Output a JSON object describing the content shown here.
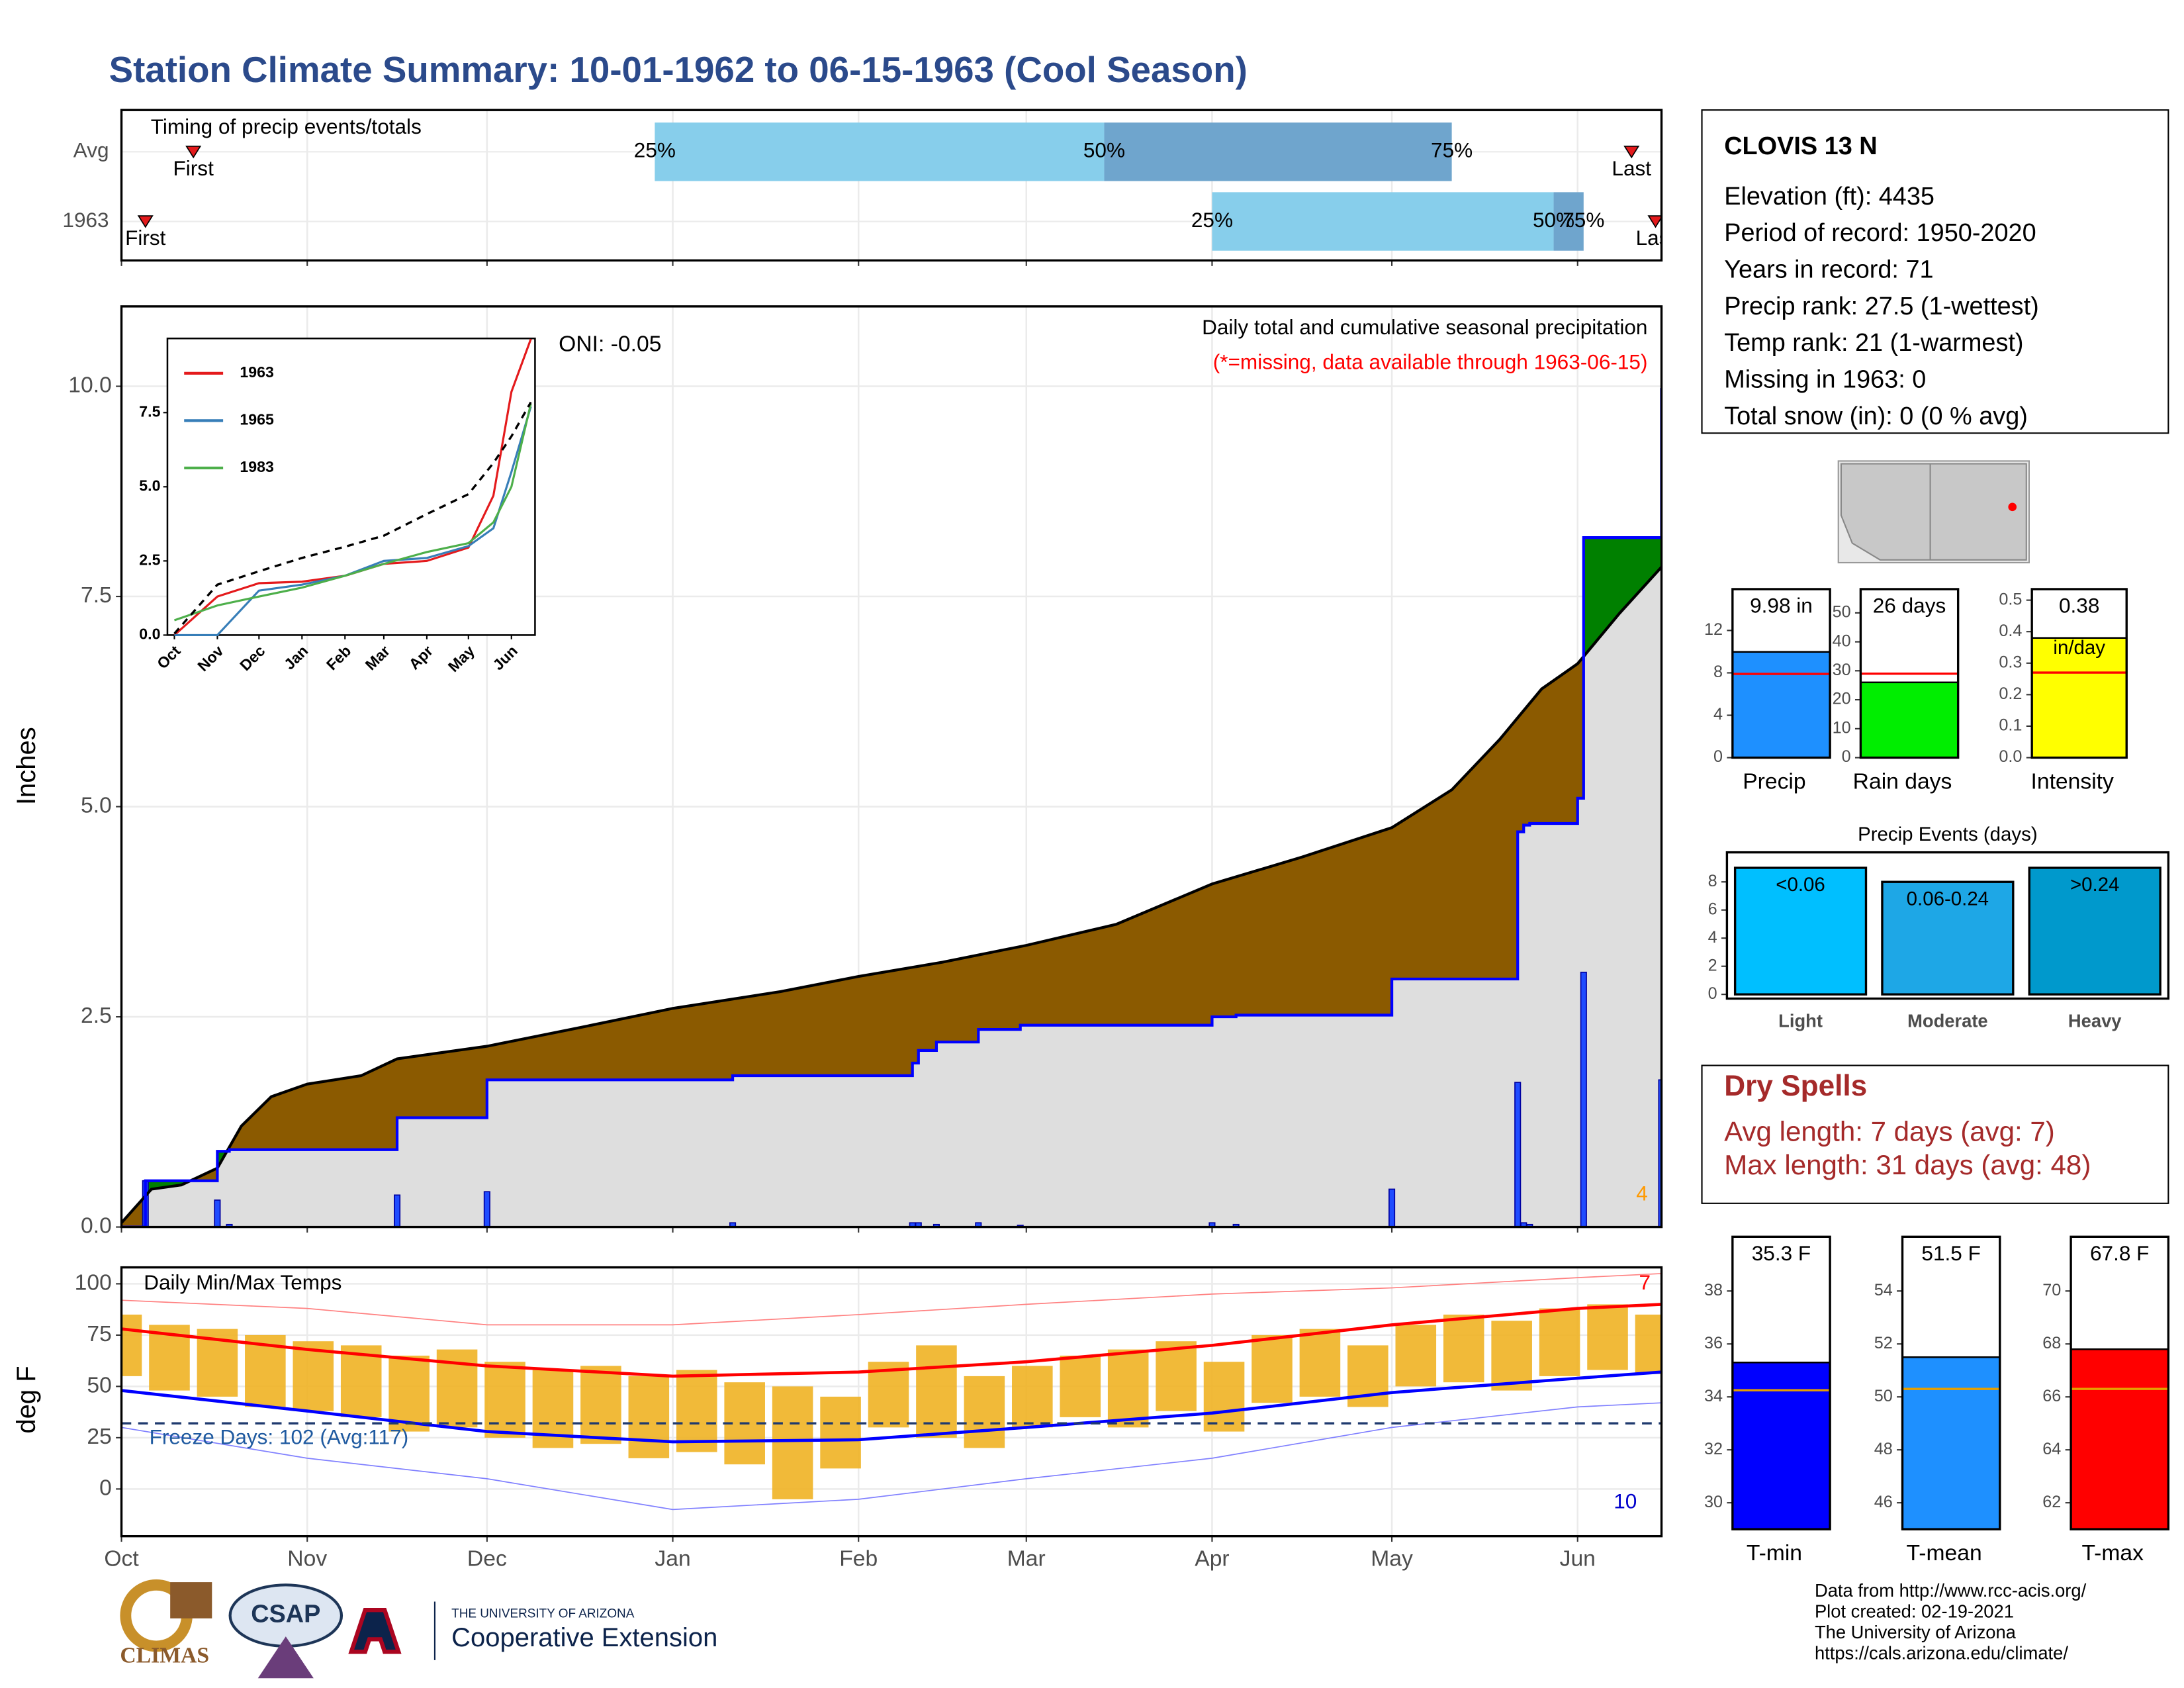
{
  "title": "Station Climate Summary: 10-01-1962 to 06-15-1963 (Cool Season)",
  "station": {
    "name": "CLOVIS 13 N",
    "lines": [
      "Elevation (ft): 4435",
      "Period of record: 1950-2020",
      "Years in record: 71",
      "Precip rank: 27.5 (1-wettest)",
      "Temp rank: 21 (1-warmest)",
      "Missing in 1963: 0",
      "Total snow (in): 0 (0 % avg)"
    ]
  },
  "dry_spells": {
    "title": "Dry Spells",
    "lines": [
      "Avg length: 7 days (avg: 7)",
      "Max length: 31 days (avg: 48)"
    ]
  },
  "credits": [
    "Data from http://www.rcc-acis.org/",
    "Plot created: 02-19-2021",
    "The University of Arizona",
    "https://cals.arizona.edu/climate/"
  ],
  "logos": {
    "climas": "CLIMAS",
    "csap": "CSAP",
    "university": "THE UNIVERSITY OF ARIZONA",
    "extension": "Cooperative Extension"
  },
  "chart_data": [
    {
      "type": "timeline",
      "title": "Timing of precip events/totals",
      "xlim": [
        0,
        257
      ],
      "xticks": [
        0,
        31,
        61,
        92,
        123,
        151,
        182,
        212,
        243
      ],
      "grid": true,
      "rows": [
        {
          "name": "Avg",
          "first": 12,
          "last": 252,
          "quantiles": [
            89,
            164,
            222
          ]
        },
        {
          "name": "1963",
          "first": 4,
          "last": 256,
          "quantiles": [
            182,
            239,
            244
          ]
        }
      ],
      "first_label": "First",
      "last_label": "Last",
      "quantile_labels": [
        "25%",
        "50%",
        "75%"
      ],
      "colors": [
        "#87ceeb",
        "#6fa5cd"
      ],
      "marker_color": "#e31a1c"
    },
    {
      "type": "cumulative-precip",
      "ylabel": "Inches",
      "xlim": [
        0,
        257
      ],
      "xticks": [
        0,
        31,
        61,
        92,
        123,
        151,
        182,
        212,
        243
      ],
      "grid": true,
      "ylim": [
        0,
        10.95
      ],
      "yticks": [
        {
          "value": 0,
          "label": "0.0"
        },
        {
          "value": 2.5,
          "label": "2.5"
        },
        {
          "value": 5,
          "label": "5.0"
        },
        {
          "value": 7.5,
          "label": "7.5"
        },
        {
          "value": 10,
          "label": "10.0"
        }
      ],
      "oni": "ONI: -0.05",
      "subtitle": "Daily total and cumulative seasonal precipitation",
      "note": "(*=missing, data available through 1963-06-15)",
      "missing_count": "4",
      "average": {
        "color": "#000000",
        "x": [
          0,
          5,
          10,
          16,
          20,
          25,
          31,
          40,
          46,
          61,
          75,
          92,
          110,
          123,
          137,
          151,
          166,
          182,
          197,
          212,
          222,
          230,
          237,
          243,
          250,
          257
        ],
        "values": [
          0.05,
          0.45,
          0.5,
          0.7,
          1.2,
          1.55,
          1.7,
          1.8,
          2.0,
          2.15,
          2.35,
          2.6,
          2.8,
          2.98,
          3.15,
          3.35,
          3.6,
          4.08,
          4.4,
          4.75,
          5.2,
          5.8,
          6.4,
          6.7,
          7.3,
          7.85
        ]
      },
      "season": {
        "color": "#0000ff",
        "x": [
          0,
          4,
          16,
          18,
          46,
          61,
          102,
          132,
          133,
          136,
          143,
          150,
          182,
          186,
          212,
          233,
          234,
          235,
          243,
          244,
          256,
          257
        ],
        "values": [
          0,
          0.55,
          0.9,
          0.92,
          1.3,
          1.75,
          1.8,
          1.95,
          2.1,
          2.2,
          2.35,
          2.4,
          2.5,
          2.52,
          2.95,
          4.7,
          4.78,
          4.8,
          5.1,
          8.2,
          8.2,
          9.98
        ]
      },
      "daily": {
        "color": "#1f4cff",
        "x": [
          4,
          16,
          18,
          46,
          61,
          102,
          132,
          133,
          136,
          143,
          150,
          182,
          186,
          212,
          233,
          234,
          235,
          244,
          257
        ],
        "values": [
          0.55,
          0.32,
          0.03,
          0.38,
          0.42,
          0.05,
          0.05,
          0.05,
          0.03,
          0.05,
          0.02,
          0.05,
          0.03,
          0.45,
          1.72,
          0.05,
          0.03,
          3.03,
          1.75
        ]
      },
      "below_average_color": "#8b5a00",
      "above_average_color": "#008000",
      "base_color": "#dedede"
    },
    {
      "type": "line",
      "xlim": [
        0,
        257
      ],
      "ylim": [
        0,
        10
      ],
      "xticks": [
        {
          "value": 0,
          "label": "Oct"
        },
        {
          "value": 31,
          "label": "Nov"
        },
        {
          "value": 61,
          "label": "Dec"
        },
        {
          "value": 92,
          "label": "Jan"
        },
        {
          "value": 123,
          "label": "Feb"
        },
        {
          "value": 151,
          "label": "Mar"
        },
        {
          "value": 182,
          "label": "Apr"
        },
        {
          "value": 212,
          "label": "May"
        },
        {
          "value": 243,
          "label": "Jun"
        }
      ],
      "yticks": [
        {
          "value": 0,
          "label": "0.0"
        },
        {
          "value": 2.5,
          "label": "2.5"
        },
        {
          "value": 5,
          "label": "5.0"
        },
        {
          "value": 7.5,
          "label": "7.5"
        }
      ],
      "x": [
        0,
        31,
        61,
        92,
        123,
        151,
        182,
        212,
        230,
        243,
        257
      ],
      "average": {
        "color": "#000000",
        "values": [
          0.05,
          1.7,
          2.15,
          2.6,
          2.98,
          3.35,
          4.08,
          4.75,
          5.8,
          6.7,
          7.85
        ]
      },
      "series": [
        {
          "name": "1963",
          "color": "#e41a1c",
          "values": [
            0,
            1.3,
            1.75,
            1.8,
            2.0,
            2.4,
            2.5,
            2.95,
            4.7,
            8.2,
            9.98
          ]
        },
        {
          "name": "1965",
          "color": "#377eb8",
          "values": [
            0,
            0,
            1.5,
            1.7,
            2.0,
            2.5,
            2.6,
            3.0,
            3.6,
            5.5,
            7.7
          ]
        },
        {
          "name": "1983",
          "color": "#4daf4a",
          "values": [
            0.5,
            1.0,
            1.3,
            1.6,
            2.0,
            2.4,
            2.8,
            3.1,
            3.8,
            5.0,
            7.8
          ]
        }
      ]
    },
    {
      "type": "temperature",
      "title": "Daily Min/Max Temps",
      "ylabel": "deg F",
      "xlim": [
        0,
        257
      ],
      "grid": true,
      "xticks": [
        {
          "value": 0,
          "label": "Oct"
        },
        {
          "value": 31,
          "label": "Nov"
        },
        {
          "value": 61,
          "label": "Dec"
        },
        {
          "value": 92,
          "label": "Jan"
        },
        {
          "value": 123,
          "label": "Feb"
        },
        {
          "value": 151,
          "label": "Mar"
        },
        {
          "value": 182,
          "label": "Apr"
        },
        {
          "value": 212,
          "label": "May"
        },
        {
          "value": 243,
          "label": "Jun"
        }
      ],
      "ylim": [
        -23,
        108
      ],
      "yticks": [
        0,
        25,
        50,
        75,
        100
      ],
      "x": [
        0,
        8,
        16,
        24,
        32,
        40,
        48,
        56,
        64,
        72,
        80,
        88,
        96,
        104,
        112,
        120,
        128,
        136,
        144,
        152,
        160,
        168,
        176,
        184,
        192,
        200,
        208,
        216,
        224,
        232,
        240,
        248,
        256
      ],
      "daily_max": [
        85,
        80,
        78,
        75,
        72,
        70,
        65,
        68,
        62,
        58,
        60,
        55,
        58,
        52,
        50,
        45,
        62,
        70,
        55,
        60,
        65,
        68,
        72,
        62,
        75,
        78,
        70,
        80,
        85,
        82,
        88,
        90,
        85
      ],
      "daily_min": [
        55,
        48,
        45,
        40,
        38,
        35,
        28,
        30,
        25,
        20,
        22,
        15,
        18,
        12,
        -5,
        10,
        30,
        25,
        20,
        30,
        35,
        30,
        38,
        28,
        42,
        45,
        40,
        50,
        52,
        48,
        55,
        58,
        56
      ],
      "bar_color": "#f0b323",
      "normals_x": [
        0,
        31,
        61,
        92,
        123,
        151,
        182,
        212,
        243,
        257
      ],
      "avg_max": {
        "color": "#ff0000",
        "values": [
          78,
          68,
          60,
          55,
          57,
          62,
          70,
          80,
          88,
          90
        ]
      },
      "avg_min": {
        "color": "#0000ff",
        "values": [
          48,
          38,
          28,
          23,
          24,
          30,
          37,
          47,
          54,
          57
        ]
      },
      "record_high": {
        "color": "#ff8080",
        "values": [
          92,
          88,
          80,
          80,
          85,
          90,
          95,
          98,
          103,
          105
        ]
      },
      "record_low": {
        "color": "#8080ff",
        "values": [
          30,
          15,
          5,
          -10,
          -5,
          5,
          15,
          30,
          40,
          42
        ]
      },
      "freeze_line": 32,
      "freeze_label": "Freeze Days: 102 (Avg:117)",
      "record_high_count": "7",
      "record_low_count": "10"
    },
    {
      "type": "summary-bar",
      "label": "Precip",
      "value": 9.98,
      "value_label": "9.98 in",
      "average": 7.9,
      "ylim": [
        0,
        15.9
      ],
      "yticks": [
        0,
        4,
        8,
        12
      ],
      "color": "#1e90ff",
      "average_color": "#ff0000"
    },
    {
      "type": "summary-bar",
      "label": "Rain days",
      "value": 26,
      "value_label": "26 days",
      "average": 29,
      "ylim": [
        0,
        58.2
      ],
      "yticks": [
        0,
        10,
        20,
        30,
        40,
        50
      ],
      "color": "#00ee00",
      "average_color": "#ff0000"
    },
    {
      "type": "summary-bar",
      "label": "Intensity",
      "value": 0.38,
      "value_label": "0.38",
      "unit": "in/day",
      "average": 0.27,
      "ylim": [
        0,
        0.535
      ],
      "yticks": [
        {
          "value": 0,
          "label": "0.0"
        },
        {
          "value": 0.1,
          "label": "0.1"
        },
        {
          "value": 0.2,
          "label": "0.2"
        },
        {
          "value": 0.3,
          "label": "0.3"
        },
        {
          "value": 0.4,
          "label": "0.4"
        },
        {
          "value": 0.5,
          "label": "0.5"
        }
      ],
      "color": "#ffff00",
      "average_color": "#ff0000"
    },
    {
      "type": "bar",
      "title": "Precip Events (days)",
      "categories": [
        "Light",
        "Moderate",
        "Heavy"
      ],
      "bin_labels": [
        "<0.06",
        "0.06-0.24",
        ">0.24"
      ],
      "values": [
        9,
        8,
        9
      ],
      "ylim": [
        -0.3,
        10.1
      ],
      "yticks": [
        0,
        2,
        4,
        6,
        8
      ],
      "colors": [
        "#00bfff",
        "#1ea7e6",
        "#0099cc"
      ]
    },
    {
      "type": "summary-bar",
      "label": "T-min",
      "value": 35.3,
      "value_label": "35.3 F",
      "average": 34.25,
      "ylim": [
        29,
        40.05
      ],
      "yticks": [
        30,
        32,
        34,
        36,
        38
      ],
      "color": "#0000ff",
      "average_color": "#e69f00"
    },
    {
      "type": "summary-bar",
      "label": "T-mean",
      "value": 51.5,
      "value_label": "51.5 F",
      "average": 50.3,
      "ylim": [
        45,
        56.05
      ],
      "yticks": [
        46,
        48,
        50,
        52,
        54
      ],
      "color": "#1e90ff",
      "average_color": "#e69f00"
    },
    {
      "type": "summary-bar",
      "label": "T-max",
      "value": 67.8,
      "value_label": "67.8 F",
      "average": 66.3,
      "ylim": [
        61,
        72.05
      ],
      "yticks": [
        62,
        64,
        66,
        68,
        70
      ],
      "color": "#ff0000",
      "average_color": "#e69f00"
    }
  ]
}
